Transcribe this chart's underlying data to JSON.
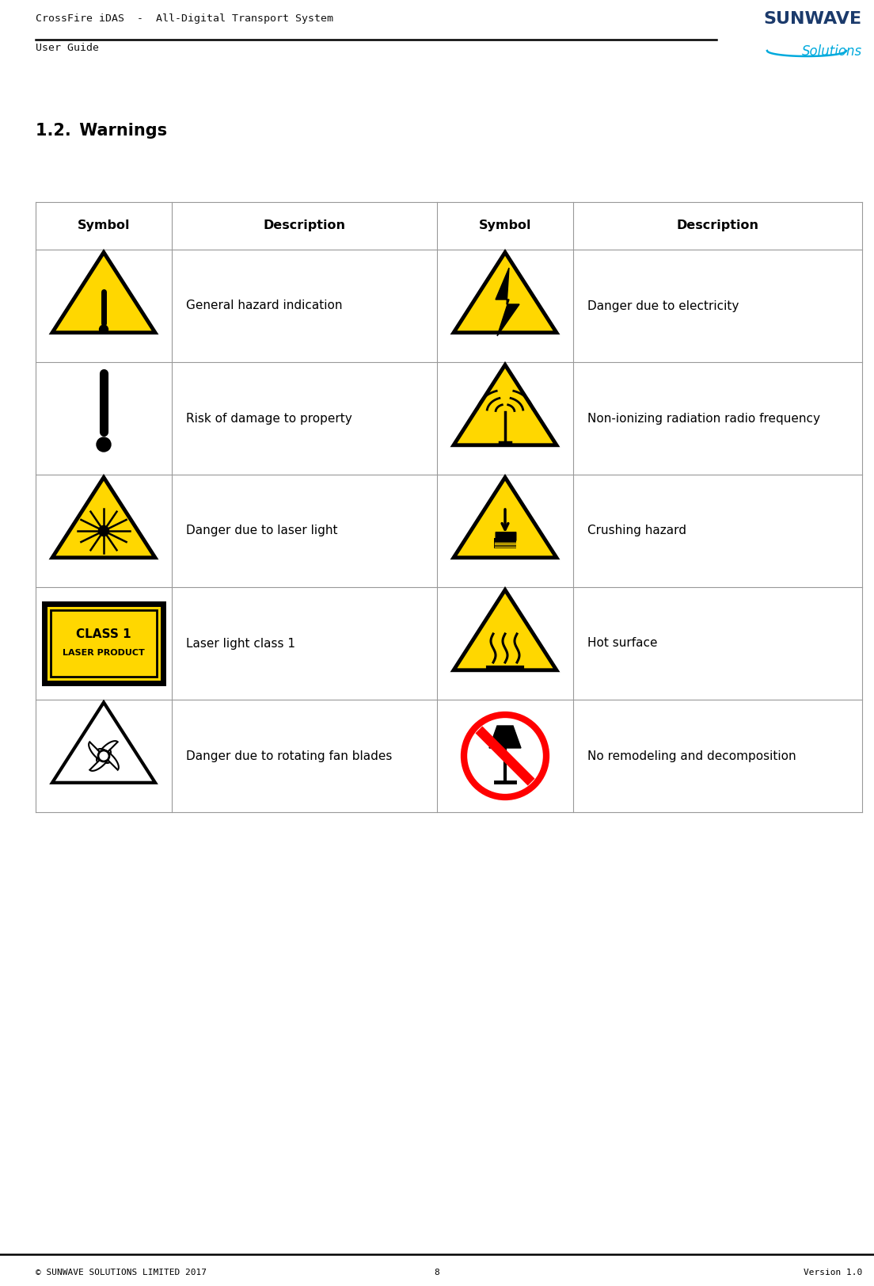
{
  "page_title_line1": "CrossFire iDAS  -  All-Digital Transport System",
  "page_title_line2": "User Guide",
  "logo_sunwave": "SUNWAVE",
  "logo_solutions": "Solutions",
  "section_title": "1.2. Warnings",
  "table_header": [
    "Symbol",
    "Description",
    "Symbol",
    "Description"
  ],
  "rows": [
    {
      "symbol_left": "hazard_triangle_exclaim",
      "desc_left": "General hazard indication",
      "symbol_right": "hazard_triangle_lightning",
      "desc_right": "Danger due to electricity"
    },
    {
      "symbol_left": "exclamation_black",
      "desc_left": "Risk of damage to property",
      "symbol_right": "hazard_triangle_radio",
      "desc_right": "Non-ionizing radiation radio frequency"
    },
    {
      "symbol_left": "hazard_triangle_laser",
      "desc_left": "Danger due to laser light",
      "symbol_right": "hazard_triangle_crush",
      "desc_right": "Crushing hazard"
    },
    {
      "symbol_left": "laser_product_box",
      "desc_left": "Laser light class 1",
      "symbol_right": "hazard_triangle_hot",
      "desc_right": "Hot surface"
    },
    {
      "symbol_left": "hazard_triangle_fan",
      "desc_left": "Danger due to rotating fan blades",
      "symbol_right": "no_decomposition",
      "desc_right": "No remodeling and decomposition"
    }
  ],
  "footer_left": "© SUNWAVE SOLUTIONS LIMITED 2017",
  "footer_center": "8",
  "footer_right": "Version 1.0",
  "bg_color": "#ffffff",
  "yellow": "#FFD700",
  "black": "#000000"
}
